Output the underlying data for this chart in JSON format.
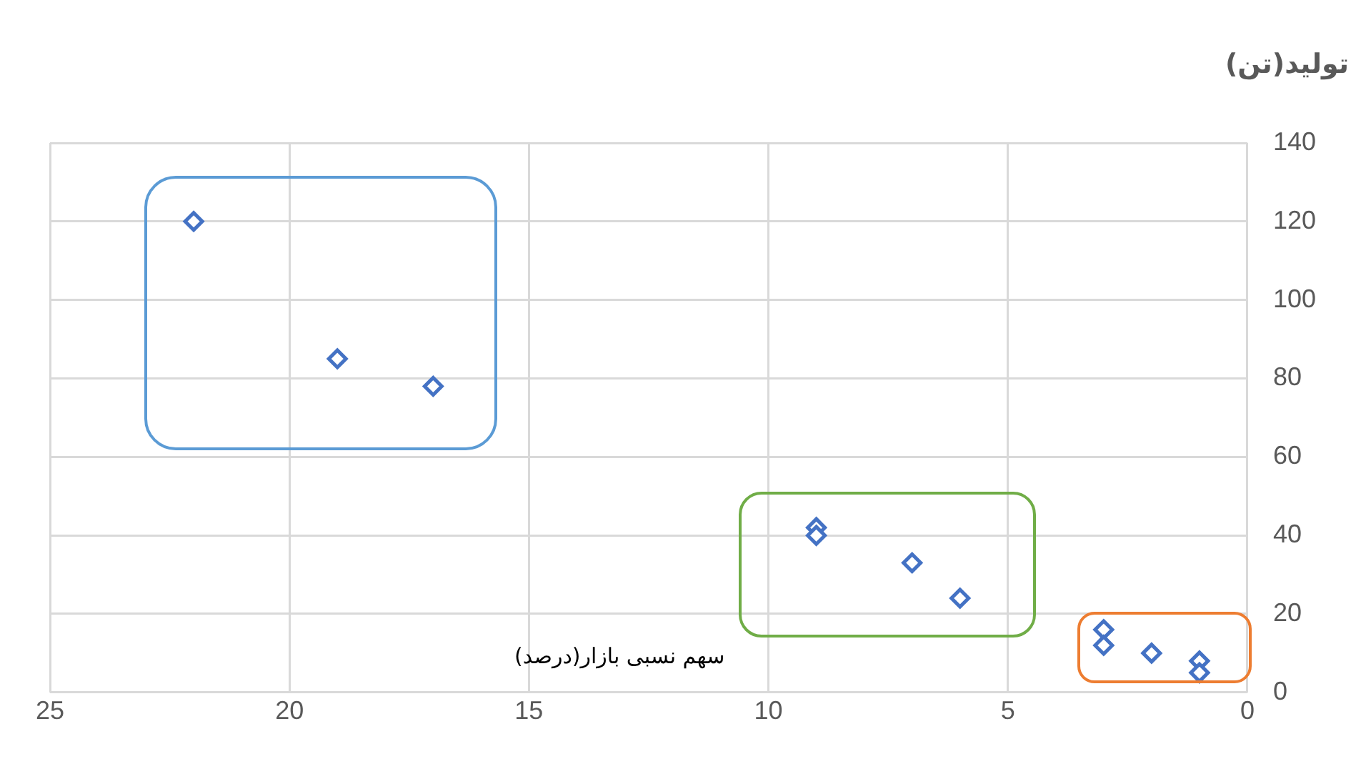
{
  "chart_data": {
    "type": "scatter",
    "xlabel": "سهم نسبی بازار(درصد)",
    "ylabel": "تولید(تن)",
    "x": [
      22,
      19,
      17,
      9,
      9,
      7,
      6,
      3,
      3,
      2,
      1,
      1
    ],
    "series": [
      {
        "color": "#4472c4",
        "values": [
          120,
          85,
          78,
          42,
          40,
          33,
          24,
          16,
          12,
          10,
          8,
          5
        ]
      }
    ],
    "xlim": [
      25,
      0
    ],
    "xticks": [
      25,
      20,
      15,
      10,
      5,
      0
    ],
    "ylim": [
      0,
      140
    ],
    "yticks": [
      0,
      20,
      40,
      60,
      80,
      100,
      120,
      140
    ],
    "grid": true,
    "marker": "diamond",
    "legend": false
  }
}
